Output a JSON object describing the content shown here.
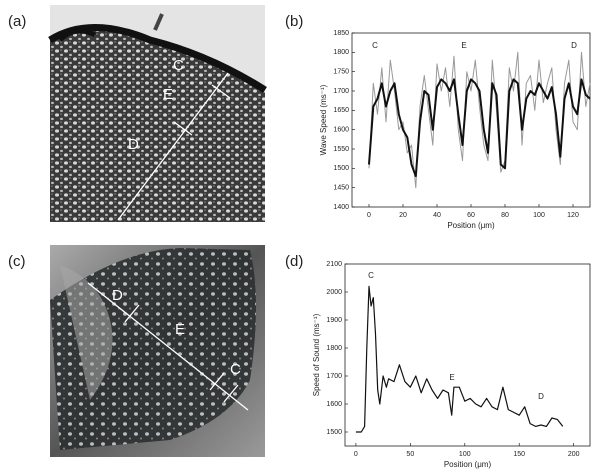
{
  "images": [
    {
      "label": "(a)",
      "annotations": [
        "C",
        "E",
        "D"
      ]
    },
    {
      "label": "(c)",
      "annotations": [
        "D",
        "E",
        "C"
      ]
    }
  ],
  "chart_data": [
    {
      "type": "line",
      "panel": "(b)",
      "ylabel": "Wave Speed (ms⁻¹)",
      "xlabel": "Position (μm)",
      "annotations": [
        "C",
        "E",
        "D"
      ],
      "xlim": [
        -10,
        130
      ],
      "ylim": [
        1400,
        1850
      ],
      "xticks": [
        0,
        20,
        40,
        60,
        80,
        100,
        120
      ],
      "yticks": [
        1400,
        1450,
        1500,
        1550,
        1600,
        1650,
        1700,
        1750,
        1800,
        1850
      ],
      "x": [
        0,
        2.5,
        5,
        7.5,
        10,
        12.5,
        15,
        17.5,
        20,
        22.5,
        25,
        27.5,
        30,
        32.5,
        35,
        37.5,
        40,
        42.5,
        45,
        47.5,
        50,
        52.5,
        55,
        57.5,
        60,
        62.5,
        65,
        67.5,
        70,
        72.5,
        75,
        77.5,
        80,
        82.5,
        85,
        87.5,
        90,
        92.5,
        95,
        97.5,
        100,
        102.5,
        105,
        107.5,
        110,
        112.5,
        115,
        117.5,
        120,
        122.5,
        125,
        127.5,
        130
      ],
      "series": [
        {
          "color": "#999999",
          "width": 1,
          "values": [
            1500,
            1720,
            1640,
            1760,
            1620,
            1780,
            1700,
            1600,
            1620,
            1540,
            1560,
            1450,
            1660,
            1740,
            1650,
            1560,
            1770,
            1700,
            1760,
            1660,
            1790,
            1600,
            1520,
            1750,
            1700,
            1780,
            1660,
            1560,
            1520,
            1780,
            1650,
            1490,
            1520,
            1760,
            1700,
            1800,
            1560,
            1720,
            1740,
            1650,
            1780,
            1670,
            1720,
            1760,
            1600,
            1510,
            1720,
            1780,
            1620,
            1600,
            1800,
            1660,
            1720
          ]
        },
        {
          "color": "#111111",
          "width": 2,
          "values": [
            1510,
            1660,
            1680,
            1720,
            1660,
            1700,
            1720,
            1640,
            1600,
            1580,
            1510,
            1480,
            1620,
            1700,
            1690,
            1600,
            1710,
            1730,
            1720,
            1700,
            1730,
            1640,
            1560,
            1700,
            1730,
            1720,
            1700,
            1600,
            1540,
            1720,
            1690,
            1510,
            1500,
            1700,
            1730,
            1720,
            1600,
            1680,
            1700,
            1690,
            1720,
            1700,
            1680,
            1710,
            1640,
            1530,
            1680,
            1720,
            1660,
            1640,
            1730,
            1690,
            1680
          ]
        }
      ]
    },
    {
      "type": "line",
      "panel": "(d)",
      "ylabel": "Speed of Sound (ms⁻¹)",
      "xlabel": "Position (μm)",
      "annotations": [
        "C",
        "E",
        "D"
      ],
      "xlim": [
        -10,
        215
      ],
      "ylim": [
        1450,
        2100
      ],
      "xticks": [
        0,
        50,
        100,
        150,
        200
      ],
      "yticks": [
        1500,
        1600,
        1700,
        1800,
        1900,
        2000,
        2100
      ],
      "x": [
        0,
        5,
        8,
        10,
        12,
        14,
        16,
        18,
        20,
        22,
        25,
        28,
        30,
        35,
        40,
        45,
        50,
        55,
        60,
        65,
        70,
        75,
        80,
        85,
        88,
        90,
        95,
        100,
        105,
        110,
        115,
        120,
        125,
        130,
        135,
        140,
        145,
        150,
        155,
        160,
        165,
        170,
        175,
        180,
        185,
        190
      ],
      "series": [
        {
          "color": "#111111",
          "width": 1.2,
          "values": [
            1500,
            1500,
            1520,
            1800,
            2020,
            1950,
            1980,
            1850,
            1650,
            1600,
            1700,
            1660,
            1690,
            1680,
            1740,
            1680,
            1660,
            1700,
            1640,
            1690,
            1650,
            1620,
            1650,
            1640,
            1560,
            1660,
            1660,
            1610,
            1620,
            1600,
            1590,
            1620,
            1590,
            1580,
            1660,
            1580,
            1570,
            1560,
            1590,
            1530,
            1520,
            1525,
            1520,
            1550,
            1545,
            1520
          ]
        }
      ]
    }
  ]
}
